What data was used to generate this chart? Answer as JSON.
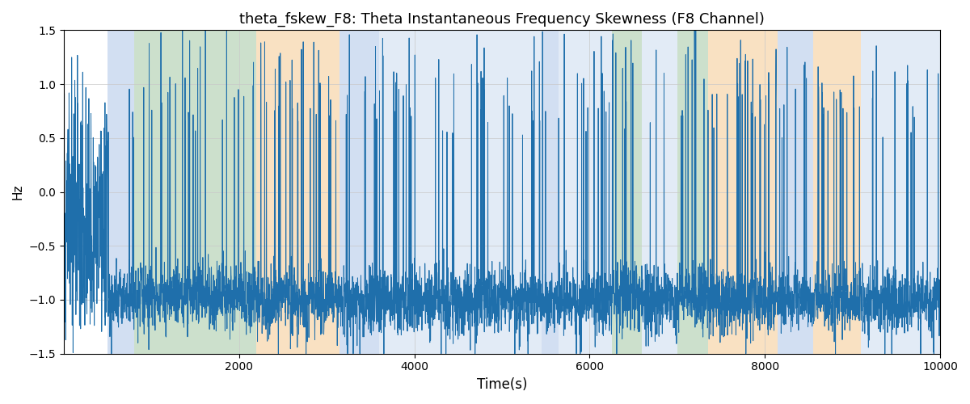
{
  "title": "theta_fskew_F8: Theta Instantaneous Frequency Skewness (F8 Channel)",
  "xlabel": "Time(s)",
  "ylabel": "Hz",
  "xlim": [
    0,
    10000
  ],
  "ylim": [
    -1.5,
    1.5
  ],
  "yticks": [
    -1.5,
    -1.0,
    -0.5,
    0.0,
    0.5,
    1.0,
    1.5
  ],
  "xticks": [
    2000,
    4000,
    6000,
    8000,
    10000
  ],
  "line_color": "#1f6fab",
  "line_width": 0.7,
  "background_color": "#ffffff",
  "grid_color": "#c8c8c8",
  "regions": [
    {
      "xstart": 500,
      "xend": 800,
      "color": "#aec6e8",
      "alpha": 0.55
    },
    {
      "xstart": 800,
      "xend": 2200,
      "color": "#8fbc8f",
      "alpha": 0.45
    },
    {
      "xstart": 2200,
      "xend": 3150,
      "color": "#f5c990",
      "alpha": 0.55
    },
    {
      "xstart": 3150,
      "xend": 3600,
      "color": "#aec6e8",
      "alpha": 0.55
    },
    {
      "xstart": 3600,
      "xend": 5450,
      "color": "#aec6e8",
      "alpha": 0.35
    },
    {
      "xstart": 5450,
      "xend": 5650,
      "color": "#aec6e8",
      "alpha": 0.55
    },
    {
      "xstart": 5650,
      "xend": 6250,
      "color": "#aec6e8",
      "alpha": 0.35
    },
    {
      "xstart": 6250,
      "xend": 6600,
      "color": "#8fbc8f",
      "alpha": 0.45
    },
    {
      "xstart": 6600,
      "xend": 7000,
      "color": "#aec6e8",
      "alpha": 0.35
    },
    {
      "xstart": 7000,
      "xend": 7350,
      "color": "#8fbc8f",
      "alpha": 0.45
    },
    {
      "xstart": 7350,
      "xend": 8150,
      "color": "#f5c990",
      "alpha": 0.55
    },
    {
      "xstart": 8150,
      "xend": 8550,
      "color": "#aec6e8",
      "alpha": 0.55
    },
    {
      "xstart": 8550,
      "xend": 9100,
      "color": "#f5c990",
      "alpha": 0.55
    },
    {
      "xstart": 9100,
      "xend": 10000,
      "color": "#aec6e8",
      "alpha": 0.35
    }
  ],
  "seed": 12345,
  "n_points": 5000
}
